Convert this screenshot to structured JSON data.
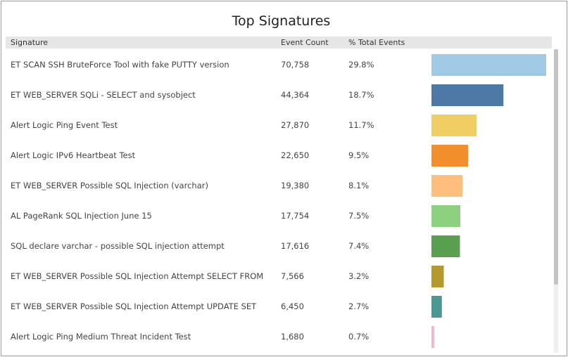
{
  "chart_data": {
    "type": "table",
    "title": "Top Signatures",
    "columns": [
      "Signature",
      "Event Count",
      "% Total Events"
    ],
    "rows": [
      {
        "signature": "ET SCAN SSH BruteForce Tool with fake PUTTY version",
        "count": "70,758",
        "pct": "29.8%",
        "value": 29.8,
        "color": "#9fcae6"
      },
      {
        "signature": "ET WEB_SERVER SQLi - SELECT and sysobject",
        "count": "44,364",
        "pct": "18.7%",
        "value": 18.7,
        "color": "#4e79a7"
      },
      {
        "signature": "Alert Logic Ping Event Test",
        "count": "27,870",
        "pct": "11.7%",
        "value": 11.7,
        "color": "#f1ce63"
      },
      {
        "signature": "Alert Logic IPv6 Heartbeat Test",
        "count": "22,650",
        "pct": "9.5%",
        "value": 9.5,
        "color": "#f28e2b"
      },
      {
        "signature": "ET WEB_SERVER Possible SQL Injection (varchar)",
        "count": "19,380",
        "pct": "8.1%",
        "value": 8.1,
        "color": "#ffbe7d"
      },
      {
        "signature": "AL PageRank SQL Injection June 15",
        "count": "17,754",
        "pct": "7.5%",
        "value": 7.5,
        "color": "#8cd17d"
      },
      {
        "signature": "SQL declare varchar - possible SQL injection attempt",
        "count": "17,616",
        "pct": "7.4%",
        "value": 7.4,
        "color": "#59a14f"
      },
      {
        "signature": "ET WEB_SERVER Possible SQL Injection Attempt SELECT FROM",
        "count": "7,566",
        "pct": "3.2%",
        "value": 3.2,
        "color": "#b6992d"
      },
      {
        "signature": "ET WEB_SERVER Possible SQL Injection Attempt UPDATE SET",
        "count": "6,450",
        "pct": "2.7%",
        "value": 2.7,
        "color": "#499894"
      },
      {
        "signature": "Alert Logic Ping Medium Threat Incident Test",
        "count": "1,680",
        "pct": "0.7%",
        "value": 0.7,
        "color": "#f1b6cc"
      }
    ],
    "xlim": [
      0,
      29.8
    ]
  }
}
